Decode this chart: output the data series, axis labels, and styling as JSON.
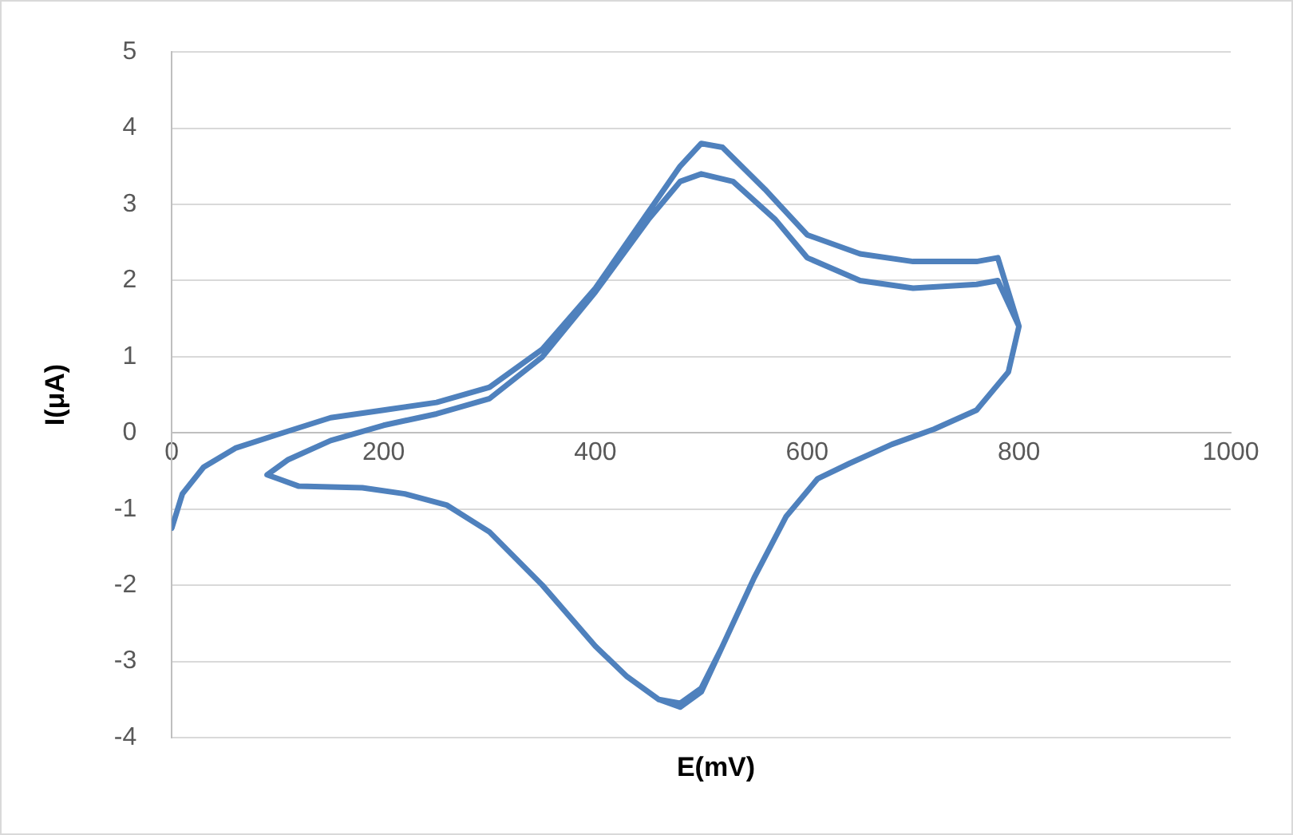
{
  "chart_data": {
    "type": "line",
    "xlabel": "E(mV)",
    "ylabel": "I(μA)",
    "xlim": [
      0,
      1000
    ],
    "xticks": [
      0,
      200,
      400,
      600,
      800,
      1000
    ],
    "ylim": [
      -4,
      5
    ],
    "yticks": [
      -4,
      -3,
      -2,
      -1,
      0,
      1,
      2,
      3,
      4,
      5
    ],
    "grid": "y",
    "legend": false,
    "marker": "none",
    "line_style": "solid",
    "series": [
      {
        "color": "#4f81bd",
        "x": [
          0,
          10,
          30,
          60,
          100,
          150,
          200,
          250,
          300,
          350,
          400,
          450,
          480,
          500,
          520,
          560,
          600,
          650,
          700,
          760,
          780,
          800,
          790,
          760,
          720,
          680,
          640,
          610,
          580,
          550,
          520,
          500,
          480,
          460,
          430,
          400,
          350,
          300,
          260,
          220,
          180,
          120,
          100,
          90,
          110,
          150,
          200,
          250,
          300,
          350,
          400,
          450,
          480,
          500,
          530,
          570,
          600,
          650,
          700,
          760,
          780,
          800,
          790,
          760,
          720,
          680,
          640,
          610,
          580,
          550,
          520,
          500,
          480,
          460,
          430,
          400,
          350,
          300,
          260,
          220,
          180,
          120,
          100
        ],
        "values": [
          -1.25,
          -0.8,
          -0.45,
          -0.2,
          -0.02,
          0.2,
          0.3,
          0.4,
          0.6,
          1.1,
          1.9,
          2.9,
          3.5,
          3.8,
          3.75,
          3.2,
          2.6,
          2.35,
          2.25,
          2.25,
          2.3,
          1.4,
          0.8,
          0.3,
          0.05,
          -0.15,
          -0.4,
          -0.6,
          -1.1,
          -1.9,
          -2.8,
          -3.35,
          -3.55,
          -3.5,
          -3.2,
          -2.8,
          -2.0,
          -1.3,
          -0.95,
          -0.8,
          -0.72,
          -0.7,
          -0.6,
          -0.55,
          -0.35,
          -0.1,
          0.1,
          0.25,
          0.45,
          1.0,
          1.85,
          2.8,
          3.3,
          3.4,
          3.3,
          2.8,
          2.3,
          2.0,
          1.9,
          1.95,
          2.0,
          1.4,
          0.8,
          0.3,
          0.05,
          -0.15,
          -0.4,
          -0.6,
          -1.1,
          -1.9,
          -2.8,
          -3.4,
          -3.6,
          -3.5,
          -3.2,
          -2.8,
          -2.0,
          -1.3,
          -0.95,
          -0.8,
          -0.72,
          -0.7,
          -0.6
        ]
      }
    ]
  }
}
